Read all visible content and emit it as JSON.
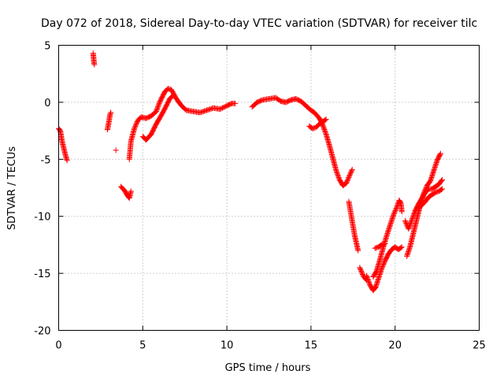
{
  "chart_data": {
    "type": "scatter",
    "title": "Day 072 of 2018, Sidereal Day-to-day VTEC variation (SDTVAR) for receiver tilc",
    "xlabel": "GPS time / hours",
    "ylabel": "SDTVAR / TECUs",
    "xlim": [
      0,
      25
    ],
    "ylim": [
      -20,
      5
    ],
    "xticks": [
      "0",
      "5",
      "10",
      "15",
      "20",
      "25"
    ],
    "yticks": [
      "5",
      "0",
      "-5",
      "-10",
      "-15",
      "-20"
    ],
    "marker": "+",
    "color": "#ff0000",
    "grid": true,
    "series": [
      {
        "name": "SDTVAR",
        "segments": [
          [
            [
              0.0,
              -2.3
            ],
            [
              0.1,
              -2.5
            ],
            [
              0.2,
              -3.4
            ],
            [
              0.3,
              -4.0
            ],
            [
              0.4,
              -4.6
            ],
            [
              0.5,
              -5.1
            ]
          ],
          [
            [
              2.05,
              4.3
            ],
            [
              2.1,
              3.5
            ],
            [
              2.12,
              3.3
            ]
          ],
          [
            [
              2.9,
              -2.4
            ],
            [
              3.0,
              -1.6
            ],
            [
              3.05,
              -1.1
            ],
            [
              3.1,
              -0.9
            ]
          ],
          [
            [
              3.4,
              -4.2
            ]
          ],
          [
            [
              3.7,
              -7.4
            ],
            [
              3.9,
              -7.7
            ],
            [
              4.1,
              -8.2
            ],
            [
              4.2,
              -8.4
            ],
            [
              4.3,
              -7.8
            ]
          ],
          [
            [
              4.2,
              -5.0
            ],
            [
              4.3,
              -3.4
            ],
            [
              4.5,
              -2.3
            ],
            [
              4.7,
              -1.6
            ],
            [
              4.9,
              -1.3
            ],
            [
              5.2,
              -1.4
            ],
            [
              5.5,
              -1.2
            ],
            [
              5.8,
              -0.8
            ],
            [
              6.0,
              0.0
            ],
            [
              6.3,
              0.9
            ],
            [
              6.5,
              1.2
            ],
            [
              6.7,
              1.1
            ],
            [
              7.0,
              0.3
            ],
            [
              7.3,
              -0.3
            ],
            [
              7.6,
              -0.7
            ],
            [
              8.0,
              -0.8
            ],
            [
              8.4,
              -0.9
            ],
            [
              8.8,
              -0.7
            ],
            [
              9.2,
              -0.5
            ],
            [
              9.6,
              -0.6
            ],
            [
              10.0,
              -0.3
            ],
            [
              10.3,
              -0.1
            ],
            [
              10.5,
              -0.1
            ]
          ],
          [
            [
              5.0,
              -3.0
            ],
            [
              5.2,
              -3.3
            ],
            [
              5.5,
              -2.8
            ],
            [
              5.8,
              -1.9
            ],
            [
              6.0,
              -1.4
            ],
            [
              6.3,
              -0.6
            ],
            [
              6.6,
              0.3
            ],
            [
              6.8,
              0.6
            ]
          ],
          [
            [
              11.5,
              -0.4
            ],
            [
              11.8,
              0.0
            ],
            [
              12.1,
              0.2
            ],
            [
              12.5,
              0.3
            ],
            [
              12.9,
              0.4
            ],
            [
              13.2,
              0.1
            ],
            [
              13.5,
              0.0
            ],
            [
              13.8,
              0.2
            ],
            [
              14.1,
              0.3
            ],
            [
              14.4,
              0.1
            ],
            [
              14.7,
              -0.3
            ],
            [
              15.0,
              -0.7
            ],
            [
              15.2,
              -0.9
            ],
            [
              15.5,
              -1.4
            ],
            [
              15.7,
              -2.0
            ],
            [
              15.9,
              -2.8
            ],
            [
              16.1,
              -3.8
            ],
            [
              16.3,
              -4.9
            ],
            [
              16.5,
              -6.0
            ],
            [
              16.7,
              -6.8
            ],
            [
              16.9,
              -7.3
            ],
            [
              17.1,
              -7.1
            ],
            [
              17.3,
              -6.4
            ],
            [
              17.45,
              -5.9
            ]
          ],
          [
            [
              14.9,
              -2.1
            ],
            [
              15.1,
              -2.3
            ],
            [
              15.3,
              -2.2
            ],
            [
              15.5,
              -1.9
            ],
            [
              15.7,
              -1.7
            ],
            [
              15.9,
              -1.5
            ]
          ],
          [
            [
              17.25,
              -8.7
            ],
            [
              17.4,
              -10.0
            ],
            [
              17.6,
              -11.7
            ],
            [
              17.8,
              -13.0
            ]
          ],
          [
            [
              17.9,
              -14.5
            ],
            [
              18.1,
              -15.2
            ],
            [
              18.3,
              -15.6
            ]
          ],
          [
            [
              18.3,
              -15.2
            ],
            [
              18.5,
              -16.0
            ],
            [
              18.7,
              -16.5
            ],
            [
              18.85,
              -16.2
            ],
            [
              19.0,
              -15.5
            ],
            [
              19.2,
              -14.6
            ],
            [
              19.4,
              -13.9
            ],
            [
              19.6,
              -13.3
            ],
            [
              19.8,
              -12.9
            ],
            [
              20.0,
              -12.7
            ],
            [
              20.2,
              -12.9
            ],
            [
              20.4,
              -12.7
            ]
          ],
          [
            [
              18.7,
              -15.3
            ],
            [
              18.9,
              -14.8
            ],
            [
              19.1,
              -13.8
            ],
            [
              19.3,
              -12.7
            ],
            [
              19.5,
              -11.7
            ],
            [
              19.7,
              -10.8
            ],
            [
              19.9,
              -9.9
            ],
            [
              20.1,
              -9.2
            ],
            [
              20.25,
              -8.6
            ],
            [
              20.35,
              -8.9
            ],
            [
              20.4,
              -9.6
            ]
          ],
          [
            [
              18.8,
              -12.8
            ],
            [
              19.0,
              -12.7
            ],
            [
              19.2,
              -12.5
            ],
            [
              19.4,
              -12.4
            ]
          ],
          [
            [
              20.6,
              -10.4
            ],
            [
              20.8,
              -11.1
            ],
            [
              21.0,
              -10.3
            ],
            [
              21.2,
              -9.5
            ],
            [
              21.4,
              -8.9
            ],
            [
              21.6,
              -8.4
            ],
            [
              21.8,
              -7.9
            ],
            [
              22.0,
              -7.6
            ],
            [
              22.2,
              -7.6
            ],
            [
              22.4,
              -7.4
            ],
            [
              22.6,
              -7.2
            ],
            [
              22.8,
              -6.8
            ]
          ],
          [
            [
              20.7,
              -13.5
            ],
            [
              20.9,
              -12.6
            ],
            [
              21.1,
              -11.4
            ],
            [
              21.3,
              -10.2
            ],
            [
              21.5,
              -9.0
            ],
            [
              21.7,
              -8.0
            ],
            [
              21.9,
              -7.3
            ],
            [
              22.1,
              -6.9
            ],
            [
              22.3,
              -6.0
            ],
            [
              22.5,
              -5.1
            ],
            [
              22.7,
              -4.5
            ]
          ],
          [
            [
              21.4,
              -9.3
            ],
            [
              21.6,
              -9.0
            ],
            [
              21.8,
              -8.7
            ],
            [
              22.0,
              -8.3
            ],
            [
              22.2,
              -8.1
            ],
            [
              22.4,
              -7.9
            ],
            [
              22.6,
              -7.8
            ],
            [
              22.8,
              -7.6
            ]
          ]
        ]
      }
    ]
  }
}
